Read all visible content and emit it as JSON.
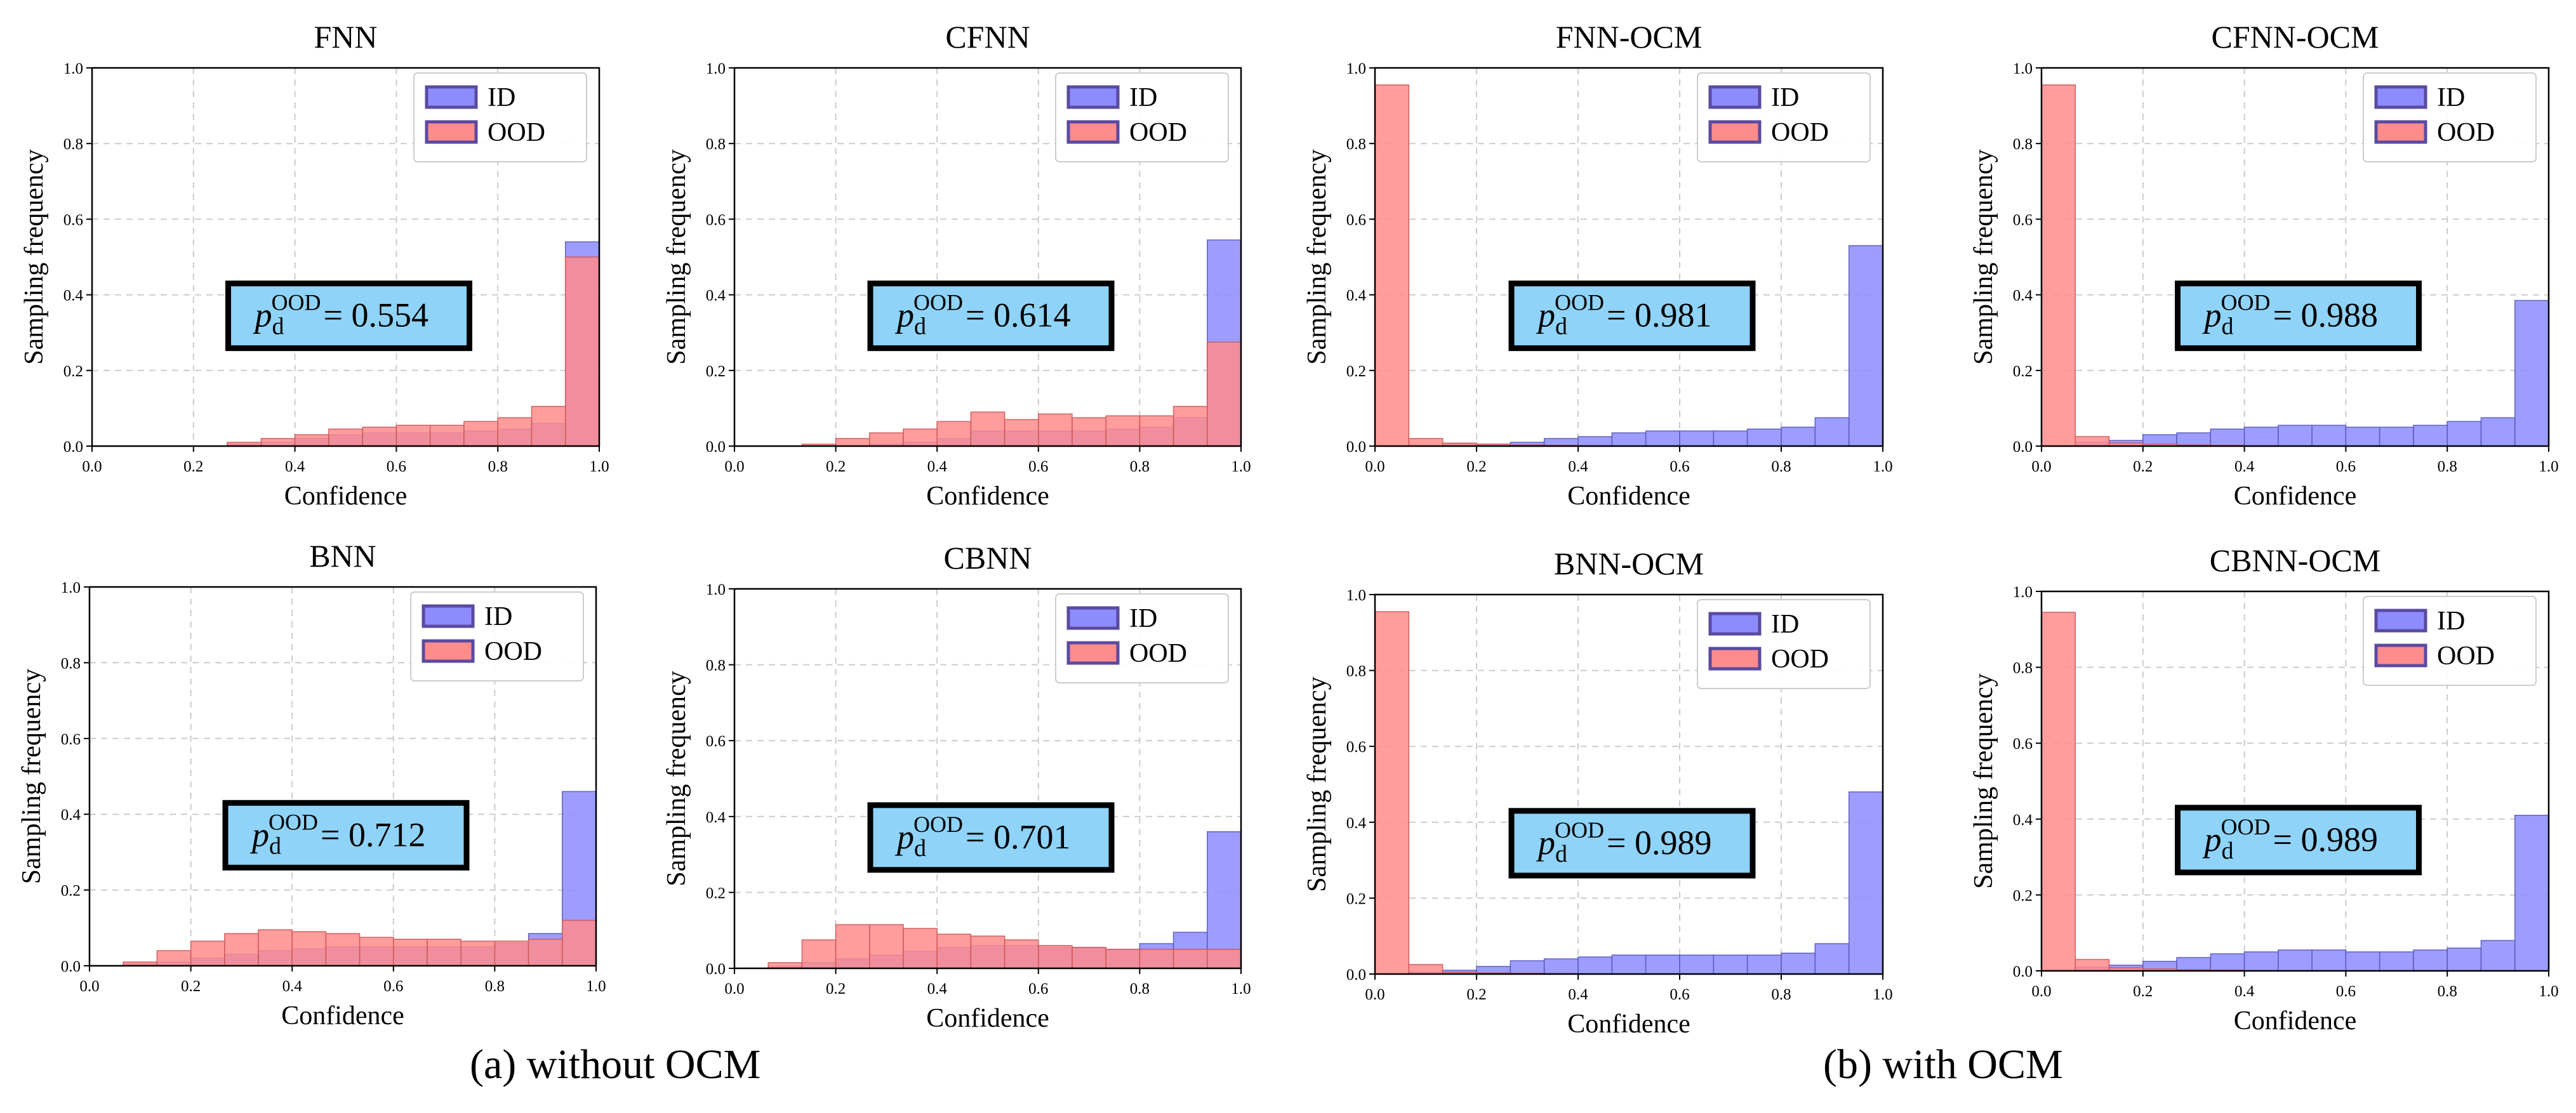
{
  "colors": {
    "id_fill": "#8c8cff",
    "id_edge": "#5555bb",
    "ood_fill": "#ff8c8c",
    "ood_edge": "#cc5555",
    "overlap_fill": "#b05a95",
    "box_fill": "#8fd3f8",
    "grid": "#cccccc"
  },
  "captions": {
    "a": "(a) without OCM",
    "b": "(b) with OCM"
  },
  "chart_data": [
    {
      "type": "bar",
      "title": "FNN",
      "xlabel": "Confidence",
      "ylabel": "Sampling frequency",
      "xlim": [
        0,
        1
      ],
      "ylim": [
        0,
        1
      ],
      "bins": 15,
      "grid": true,
      "legend": "top-right",
      "xticks": [
        "0.0",
        "0.2",
        "0.4",
        "0.6",
        "0.8",
        "1.0"
      ],
      "yticks": [
        "0.0",
        "0.2",
        "0.4",
        "0.6",
        "0.8",
        "1.0"
      ],
      "metric": {
        "symbol": "p",
        "sub": "d",
        "sup": "OOD",
        "value": "= 0.554"
      },
      "series": [
        {
          "name": "ID",
          "values": [
            0,
            0,
            0,
            0,
            0.005,
            0.01,
            0.02,
            0.03,
            0.035,
            0.035,
            0.035,
            0.04,
            0.045,
            0.06,
            0.54
          ]
        },
        {
          "name": "OOD",
          "values": [
            0,
            0,
            0,
            0,
            0.01,
            0.02,
            0.03,
            0.045,
            0.05,
            0.055,
            0.055,
            0.065,
            0.075,
            0.105,
            0.5
          ]
        }
      ]
    },
    {
      "type": "bar",
      "title": "CFNN",
      "xlabel": "Confidence",
      "ylabel": "Sampling frequency",
      "xlim": [
        0,
        1
      ],
      "ylim": [
        0,
        1
      ],
      "bins": 15,
      "grid": true,
      "legend": "top-right",
      "xticks": [
        "0.0",
        "0.2",
        "0.4",
        "0.6",
        "0.8",
        "1.0"
      ],
      "yticks": [
        "0.0",
        "0.2",
        "0.4",
        "0.6",
        "0.8",
        "1.0"
      ],
      "metric": {
        "symbol": "p",
        "sub": "d",
        "sup": "OOD",
        "value": "= 0.614"
      },
      "series": [
        {
          "name": "ID",
          "values": [
            0,
            0,
            0,
            0,
            0.005,
            0.01,
            0.02,
            0.04,
            0.04,
            0.04,
            0.04,
            0.045,
            0.05,
            0.075,
            0.545
          ]
        },
        {
          "name": "OOD",
          "values": [
            0,
            0,
            0.005,
            0.02,
            0.035,
            0.045,
            0.065,
            0.09,
            0.07,
            0.085,
            0.075,
            0.08,
            0.08,
            0.105,
            0.275
          ]
        }
      ]
    },
    {
      "type": "bar",
      "title": "FNN-OCM",
      "xlabel": "Confidence",
      "ylabel": "Sampling frequency",
      "xlim": [
        0,
        1
      ],
      "ylim": [
        0,
        1
      ],
      "bins": 15,
      "grid": true,
      "legend": "top-right",
      "xticks": [
        "0.0",
        "0.2",
        "0.4",
        "0.6",
        "0.8",
        "1.0"
      ],
      "yticks": [
        "0.0",
        "0.2",
        "0.4",
        "0.6",
        "0.8",
        "1.0"
      ],
      "metric": {
        "symbol": "p",
        "sub": "d",
        "sup": "OOD",
        "value": "= 0.981"
      },
      "series": [
        {
          "name": "ID",
          "values": [
            0,
            0,
            0.005,
            0.005,
            0.01,
            0.02,
            0.025,
            0.035,
            0.04,
            0.04,
            0.04,
            0.045,
            0.05,
            0.075,
            0.53
          ]
        },
        {
          "name": "OOD",
          "values": [
            0.955,
            0.02,
            0.008,
            0.005,
            0.003,
            0.002,
            0.001,
            0,
            0,
            0,
            0,
            0,
            0,
            0,
            0
          ]
        }
      ]
    },
    {
      "type": "bar",
      "title": "CFNN-OCM",
      "xlabel": "Confidence",
      "ylabel": "Sampling frequency",
      "xlim": [
        0,
        1
      ],
      "ylim": [
        0,
        1
      ],
      "bins": 15,
      "grid": true,
      "legend": "top-right",
      "xticks": [
        "0.0",
        "0.2",
        "0.4",
        "0.6",
        "0.8",
        "1.0"
      ],
      "yticks": [
        "0.0",
        "0.2",
        "0.4",
        "0.6",
        "0.8",
        "1.0"
      ],
      "metric": {
        "symbol": "p",
        "sub": "d",
        "sup": "OOD",
        "value": "= 0.988"
      },
      "series": [
        {
          "name": "ID",
          "values": [
            0,
            0.01,
            0.015,
            0.03,
            0.035,
            0.045,
            0.05,
            0.055,
            0.055,
            0.05,
            0.05,
            0.055,
            0.065,
            0.075,
            0.385
          ]
        },
        {
          "name": "OOD",
          "values": [
            0.955,
            0.025,
            0.008,
            0.005,
            0.003,
            0.002,
            0.001,
            0,
            0,
            0,
            0,
            0,
            0,
            0,
            0
          ]
        }
      ]
    },
    {
      "type": "bar",
      "title": "BNN",
      "xlabel": "Confidence",
      "ylabel": "Sampling frequency",
      "xlim": [
        0,
        1
      ],
      "ylim": [
        0,
        1
      ],
      "bins": 15,
      "grid": true,
      "legend": "top-right",
      "xticks": [
        "0.0",
        "0.2",
        "0.4",
        "0.6",
        "0.8",
        "1.0"
      ],
      "yticks": [
        "0.0",
        "0.2",
        "0.4",
        "0.6",
        "0.8",
        "1.0"
      ],
      "metric": {
        "symbol": "p",
        "sub": "d",
        "sup": "OOD",
        "value": "= 0.712"
      },
      "series": [
        {
          "name": "ID",
          "values": [
            0,
            0.005,
            0.01,
            0.02,
            0.03,
            0.04,
            0.045,
            0.05,
            0.05,
            0.05,
            0.05,
            0.05,
            0.06,
            0.085,
            0.46
          ]
        },
        {
          "name": "OOD",
          "values": [
            0,
            0.01,
            0.04,
            0.065,
            0.085,
            0.095,
            0.09,
            0.085,
            0.075,
            0.07,
            0.07,
            0.065,
            0.065,
            0.07,
            0.12
          ]
        }
      ]
    },
    {
      "type": "bar",
      "title": "CBNN",
      "xlabel": "Confidence",
      "ylabel": "Sampling frequency",
      "xlim": [
        0,
        1
      ],
      "ylim": [
        0,
        1
      ],
      "bins": 15,
      "grid": true,
      "legend": "top-right",
      "xticks": [
        "0.0",
        "0.2",
        "0.4",
        "0.6",
        "0.8",
        "1.0"
      ],
      "yticks": [
        "0.0",
        "0.2",
        "0.4",
        "0.6",
        "0.8",
        "1.0"
      ],
      "metric": {
        "symbol": "p",
        "sub": "d",
        "sup": "OOD",
        "value": "= 0.701"
      },
      "series": [
        {
          "name": "ID",
          "values": [
            0,
            0.005,
            0.015,
            0.025,
            0.035,
            0.045,
            0.055,
            0.06,
            0.06,
            0.055,
            0.055,
            0.05,
            0.065,
            0.095,
            0.36
          ]
        },
        {
          "name": "OOD",
          "values": [
            0,
            0.015,
            0.075,
            0.115,
            0.115,
            0.105,
            0.09,
            0.085,
            0.075,
            0.06,
            0.055,
            0.05,
            0.05,
            0.05,
            0.05
          ]
        }
      ]
    },
    {
      "type": "bar",
      "title": "BNN-OCM",
      "xlabel": "Confidence",
      "ylabel": "Sampling frequency",
      "xlim": [
        0,
        1
      ],
      "ylim": [
        0,
        1
      ],
      "bins": 15,
      "grid": true,
      "legend": "top-right",
      "xticks": [
        "0.0",
        "0.2",
        "0.4",
        "0.6",
        "0.8",
        "1.0"
      ],
      "yticks": [
        "0.0",
        "0.2",
        "0.4",
        "0.6",
        "0.8",
        "1.0"
      ],
      "metric": {
        "symbol": "p",
        "sub": "d",
        "sup": "OOD",
        "value": "= 0.989"
      },
      "series": [
        {
          "name": "ID",
          "values": [
            0,
            0.005,
            0.01,
            0.02,
            0.035,
            0.04,
            0.045,
            0.05,
            0.05,
            0.05,
            0.05,
            0.05,
            0.055,
            0.08,
            0.48
          ]
        },
        {
          "name": "OOD",
          "values": [
            0.955,
            0.025,
            0.005,
            0.003,
            0.002,
            0.001,
            0,
            0,
            0,
            0,
            0,
            0,
            0,
            0,
            0
          ]
        }
      ]
    },
    {
      "type": "bar",
      "title": "CBNN-OCM",
      "xlabel": "Confidence",
      "ylabel": "Sampling frequency",
      "xlim": [
        0,
        1
      ],
      "ylim": [
        0,
        1
      ],
      "bins": 15,
      "grid": true,
      "legend": "top-right",
      "xticks": [
        "0.0",
        "0.2",
        "0.4",
        "0.6",
        "0.8",
        "1.0"
      ],
      "yticks": [
        "0.0",
        "0.2",
        "0.4",
        "0.6",
        "0.8",
        "1.0"
      ],
      "metric": {
        "symbol": "p",
        "sub": "d",
        "sup": "OOD",
        "value": "= 0.989"
      },
      "series": [
        {
          "name": "ID",
          "values": [
            0,
            0.01,
            0.015,
            0.025,
            0.035,
            0.045,
            0.05,
            0.055,
            0.055,
            0.05,
            0.05,
            0.055,
            0.06,
            0.08,
            0.41
          ]
        },
        {
          "name": "OOD",
          "values": [
            0.945,
            0.03,
            0.008,
            0.005,
            0.003,
            0.002,
            0,
            0,
            0,
            0,
            0,
            0,
            0,
            0,
            0
          ]
        }
      ]
    }
  ]
}
